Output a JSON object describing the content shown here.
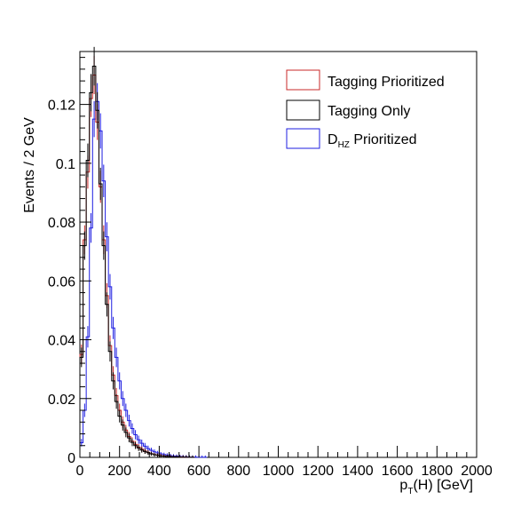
{
  "chart_data": {
    "type": "histogram",
    "title": "",
    "xlabel": {
      "main": "p",
      "sub": "T",
      "rest": "(H) [GeV]"
    },
    "ylabel": "Events / 2 GeV",
    "xlim": [
      0,
      2000
    ],
    "ylim": [
      0,
      0.138
    ],
    "grid": false,
    "legend_placement": "top-right",
    "x_ticks": [
      "0",
      "200",
      "400",
      "600",
      "800",
      "1000",
      "1200",
      "1400",
      "1600",
      "1800",
      "2000"
    ],
    "y_ticks": [
      "0",
      "0.02",
      "0.04",
      "0.06",
      "0.08",
      "0.1",
      "0.12"
    ],
    "bin_width": 16,
    "bin_edges_start": 0,
    "series": [
      {
        "name": "Tagging Prioritized",
        "color": "#c82828",
        "values": [
          0.035,
          0.074,
          0.097,
          0.122,
          0.13,
          0.114,
          0.092,
          0.074,
          0.055,
          0.038,
          0.028,
          0.021,
          0.016,
          0.012,
          0.0093,
          0.0071,
          0.0055,
          0.0044,
          0.0035,
          0.0028,
          0.0022,
          0.0017,
          0.0013,
          0.001,
          0.0008,
          0.0006,
          0.00045,
          0.00035,
          0.00025,
          0.0002,
          0.00015,
          0.0001,
          8e-05,
          5e-05,
          3e-05,
          2e-05
        ]
      },
      {
        "name": "Tagging Only",
        "color": "#000000",
        "values": [
          0.034,
          0.072,
          0.101,
          0.124,
          0.133,
          0.118,
          0.093,
          0.072,
          0.052,
          0.036,
          0.026,
          0.019,
          0.014,
          0.011,
          0.0085,
          0.0066,
          0.0051,
          0.004,
          0.0032,
          0.0025,
          0.002,
          0.0016,
          0.0012,
          0.0009,
          0.0007,
          0.0005,
          0.0004,
          0.0003,
          0.00022,
          0.00017,
          0.00012,
          8e-05,
          6e-05,
          4e-05,
          2e-05,
          1e-05
        ]
      },
      {
        "name": "D_HZ Prioritized",
        "legend_main": "D",
        "legend_sub": "HZ",
        "legend_rest": " Prioritized",
        "color": "#1e1ee1",
        "values": [
          0.005,
          0.016,
          0.041,
          0.078,
          0.115,
          0.121,
          0.111,
          0.094,
          0.075,
          0.058,
          0.044,
          0.034,
          0.026,
          0.02,
          0.016,
          0.0125,
          0.0098,
          0.0077,
          0.006,
          0.0048,
          0.0038,
          0.003,
          0.0024,
          0.0019,
          0.0015,
          0.0012,
          0.001,
          0.0008,
          0.00062,
          0.0005,
          0.0004,
          0.0003,
          0.00024,
          0.00018,
          0.00013,
          0.0001,
          7e-05,
          5e-05,
          3e-05,
          2e-05
        ]
      }
    ]
  }
}
